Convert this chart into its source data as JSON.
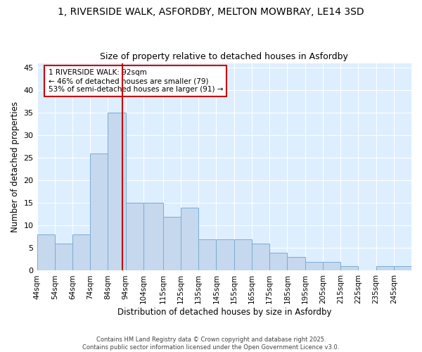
{
  "title": "1, RIVERSIDE WALK, ASFORDBY, MELTON MOWBRAY, LE14 3SD",
  "subtitle": "Size of property relative to detached houses in Asfordby",
  "xlabel": "Distribution of detached houses by size in Asfordby",
  "ylabel": "Number of detached properties",
  "bar_color": "#c5d8ee",
  "bar_edge_color": "#7aadd4",
  "background_color": "#ddeeff",
  "grid_color": "#ffffff",
  "vline_x": 92,
  "vline_color": "#cc0000",
  "annotation_text": "1 RIVERSIDE WALK: 92sqm\n← 46% of detached houses are smaller (79)\n53% of semi-detached houses are larger (91) →",
  "annotation_box_color": "#cc0000",
  "footer_line1": "Contains HM Land Registry data © Crown copyright and database right 2025.",
  "footer_line2": "Contains public sector information licensed under the Open Government Licence v3.0.",
  "bins": [
    44,
    54,
    64,
    74,
    84,
    94,
    104,
    115,
    125,
    135,
    145,
    155,
    165,
    175,
    185,
    195,
    205,
    215,
    225,
    235,
    245
  ],
  "counts": [
    8,
    6,
    8,
    26,
    35,
    15,
    15,
    12,
    14,
    7,
    7,
    7,
    6,
    4,
    3,
    2,
    2,
    1,
    0,
    1,
    1
  ],
  "bin_widths": [
    10,
    10,
    10,
    10,
    10,
    10,
    11,
    10,
    10,
    10,
    10,
    10,
    10,
    10,
    10,
    10,
    10,
    10,
    10,
    10,
    10
  ],
  "ylim": [
    0,
    46
  ],
  "yticks": [
    0,
    5,
    10,
    15,
    20,
    25,
    30,
    35,
    40,
    45
  ],
  "fig_bg": "#ffffff"
}
